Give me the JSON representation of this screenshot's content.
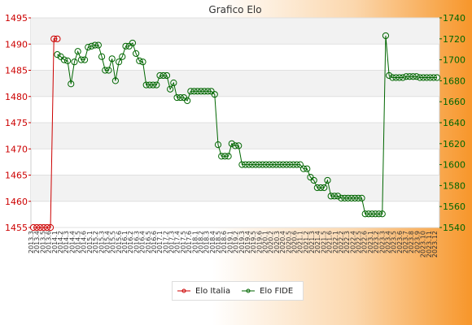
{
  "chart_data": {
    "type": "line",
    "title": "Grafico Elo",
    "left_axis": {
      "ylim": [
        1455,
        1495
      ],
      "ticks": [
        1455,
        1460,
        1465,
        1470,
        1475,
        1480,
        1485,
        1490,
        1495
      ],
      "color": "#cc0000"
    },
    "right_axis": {
      "ylim": [
        1540,
        1740
      ],
      "ticks": [
        1540,
        1560,
        1580,
        1600,
        1620,
        1640,
        1660,
        1680,
        1700,
        1720,
        1740
      ],
      "color": "#006600"
    },
    "grid": true,
    "legend_position": "bottom-center",
    "series": [
      {
        "name": "Elo Italia",
        "axis": "left",
        "color": "#cc0000",
        "values": [
          1455,
          1455,
          1455,
          1455,
          1455,
          1455,
          1491,
          1491
        ]
      },
      {
        "name": "Elo FIDE",
        "axis": "right",
        "color": "#006600",
        "values": [
          1705,
          1703,
          1700,
          1699,
          1677,
          1698,
          1708,
          1700,
          1700,
          1712,
          1713,
          1714,
          1714,
          1703,
          1690,
          1690,
          1701,
          1680,
          1698,
          1703,
          1713,
          1713,
          1716,
          1706,
          1699,
          1698,
          1676,
          1676,
          1676,
          1676,
          1685,
          1685,
          1685,
          1672,
          1678,
          1664,
          1664,
          1664,
          1661,
          1670,
          1670,
          1670,
          1670,
          1670,
          1670,
          1670,
          1667,
          1619,
          1608,
          1608,
          1608,
          1620,
          1618,
          1618,
          1600,
          1600,
          1600,
          1600,
          1600,
          1600,
          1600,
          1600,
          1600,
          1600,
          1600,
          1600,
          1600,
          1600,
          1600,
          1600,
          1600,
          1600,
          1596,
          1596,
          1588,
          1585,
          1578,
          1578,
          1578,
          1585,
          1570,
          1570,
          1570,
          1568,
          1568,
          1568,
          1568,
          1568,
          1568,
          1568,
          1553,
          1553,
          1553,
          1553,
          1553,
          1553,
          1723,
          1685,
          1683,
          1683,
          1683,
          1683,
          1684,
          1684,
          1684,
          1684,
          1683,
          1683,
          1683,
          1683,
          1683,
          1683
        ]
      }
    ],
    "x_tick_labels": [
      "2013.3",
      "2013.4",
      "2013.5",
      "2013.6",
      "2014.1",
      "2014.2",
      "2014.3",
      "2014.4",
      "2014.5",
      "2014.6",
      "2015.1",
      "2015.2",
      "2015.3",
      "2015.4",
      "2015.5",
      "2015.6",
      "2016.1",
      "2016.2",
      "2016.3",
      "2016.4",
      "2016.5",
      "2016.6",
      "2017.1",
      "2017.2",
      "2017.3",
      "2017.4",
      "2017.5",
      "2017.6",
      "2018.1",
      "2018.2",
      "2018.3",
      "2018.4",
      "2018.5",
      "2018.6",
      "2019.1",
      "2019.2",
      "2019.3",
      "2019.4",
      "2019.5",
      "2019.6",
      "2020.1",
      "2020.2",
      "2020.3",
      "2020.4",
      "2020.5",
      "2020.6",
      "2021.1",
      "2021.2",
      "2021.3",
      "2021.4",
      "2021.5",
      "2021.6",
      "2022.1",
      "2022.2",
      "2022.3",
      "2022.4",
      "2022.5",
      "2022.6",
      "2023.1",
      "2023.2",
      "2023.3",
      "2023.4",
      "2023.5",
      "2023.6",
      "2023.7",
      "2023.8",
      "2023.9",
      "2023.10",
      "2023.11",
      "2023.12"
    ]
  }
}
